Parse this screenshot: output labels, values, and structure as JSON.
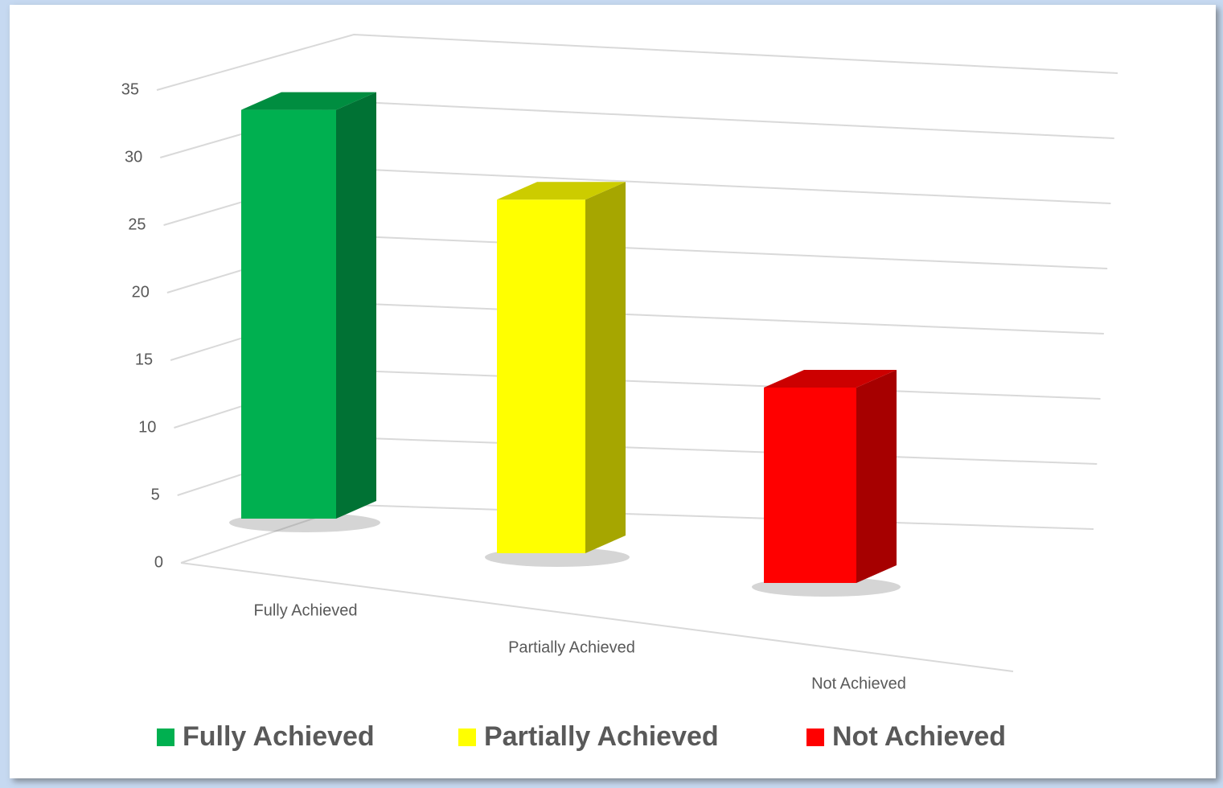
{
  "chart_data": {
    "type": "bar3d",
    "categories": [
      "Fully Achieved",
      "Partially Achieved",
      "Not Achieved"
    ],
    "series": [
      {
        "name": "Fully Achieved",
        "color": "#00b050"
      },
      {
        "name": "Partially Achieved",
        "color": "#ffff00"
      },
      {
        "name": "Not Achieved",
        "color": "#ff0000"
      }
    ],
    "values": [
      31,
      27,
      15
    ],
    "ylim": [
      0,
      35
    ],
    "yticks": [
      0,
      5,
      10,
      15,
      20,
      25,
      30,
      35
    ],
    "grid": true,
    "legend": "bottom"
  }
}
